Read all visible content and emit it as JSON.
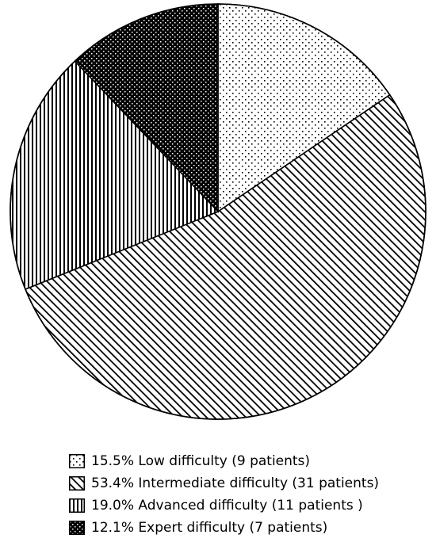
{
  "chart_data": {
    "type": "pie",
    "start_angle_deg": 0,
    "direction": "clockwise",
    "slices": [
      {
        "label": "15.5% Low difficulty (9 patients)",
        "percent": 15.5,
        "patients": 9,
        "pattern": "dots"
      },
      {
        "label": "53.4% Intermediate difficulty (31 patients)",
        "percent": 53.4,
        "patients": 31,
        "pattern": "diagonal-hatch"
      },
      {
        "label": "19.0% Advanced difficulty (11 patients )",
        "percent": 19.0,
        "patients": 11,
        "pattern": "vertical-stripes"
      },
      {
        "label": "12.1% Expert difficulty (7 patients)",
        "percent": 12.1,
        "patients": 7,
        "pattern": "dense-checker"
      }
    ],
    "legend_position": "bottom-center",
    "colors": {
      "fill": "#ffffff",
      "ink": "#000000"
    }
  }
}
